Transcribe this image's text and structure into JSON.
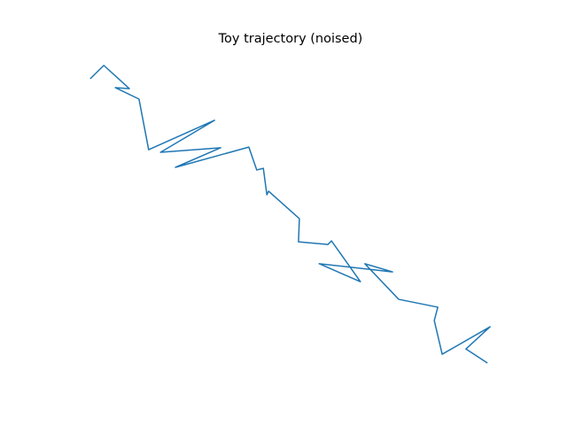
{
  "chart_data": {
    "type": "line",
    "title": "Toy trajectory (noised)",
    "x": [
      4.4,
      7.5,
      13.3,
      10.1,
      15.5,
      17.7,
      32.7,
      20.4,
      34.1,
      23.8,
      40.5,
      42.3,
      43.8,
      44.6,
      45.0,
      52.0,
      51.8,
      58.5,
      59.3,
      65.9,
      56.5,
      73.2,
      66.9,
      74.6,
      83.5,
      82.7,
      84.5,
      95.4,
      89.9,
      94.8
    ],
    "y": [
      91.6,
      95.7,
      88.6,
      88.9,
      85.4,
      69.9,
      78.9,
      69.1,
      70.5,
      64.5,
      70.7,
      63.7,
      64.2,
      56.1,
      57.2,
      48.8,
      41.7,
      40.9,
      42.0,
      29.5,
      35.0,
      32.5,
      35.0,
      24.1,
      21.7,
      17.6,
      7.3,
      15.7,
      8.9,
      4.6
    ],
    "color": "#1f77b4",
    "xlim": [
      0,
      100
    ],
    "ylim": [
      0,
      100
    ]
  }
}
